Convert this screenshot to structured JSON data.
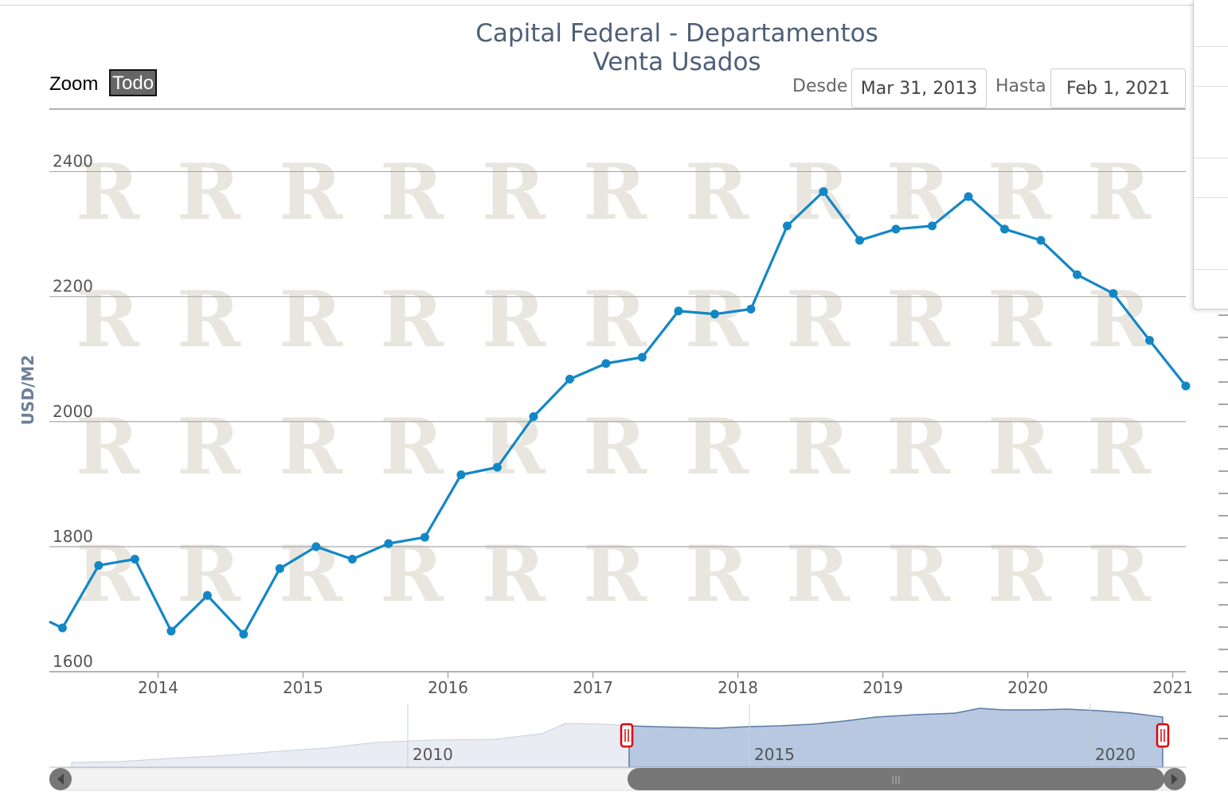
{
  "title": "Capital Federal - Departamentos Venta Usados",
  "zoom": {
    "label": "Zoom",
    "button": "Todo"
  },
  "range": {
    "from_label": "Desde",
    "from_value": "Mar 31, 2013",
    "to_label": "Hasta",
    "to_value": "Feb 1, 2021"
  },
  "navigator": {
    "tick_labels": [
      "2010",
      "2015",
      "2020"
    ],
    "scroll_grip": "III"
  },
  "colors": {
    "line": "#1387c6",
    "title": "#4d5f78",
    "watermark": "#e4e0d8",
    "navigator_fill": "#b7c8e0",
    "handle": "#e0000f"
  },
  "chart_data": {
    "type": "line",
    "title": "Capital Federal - Departamentos Venta Usados",
    "xlabel": "",
    "ylabel": "USD/M2",
    "ylim": [
      1600,
      2500
    ],
    "xlim": [
      2013.25,
      2021.09
    ],
    "y_ticks": [
      1600,
      1800,
      2000,
      2200,
      2400
    ],
    "x_ticks": [
      2014,
      2015,
      2016,
      2017,
      2018,
      2019,
      2020,
      2021
    ],
    "x_tick_labels": [
      "2014",
      "2015",
      "2016",
      "2017",
      "2018",
      "2019",
      "2020",
      "2021"
    ],
    "grid": true,
    "legend": "none",
    "series": [
      {
        "x": [
          2013.25,
          2013.34,
          2013.59,
          2013.84,
          2014.09,
          2014.34,
          2014.59,
          2014.84,
          2015.09,
          2015.34,
          2015.59,
          2015.84,
          2016.09,
          2016.34,
          2016.59,
          2016.84,
          2017.09,
          2017.34,
          2017.59,
          2017.84,
          2018.09,
          2018.34,
          2018.59,
          2018.84,
          2019.09,
          2019.34,
          2019.59,
          2019.84,
          2020.09,
          2020.34,
          2020.59,
          2020.84,
          2021.09
        ],
        "values": [
          1680,
          1670,
          1770,
          1780,
          1665,
          1722,
          1660,
          1765,
          1800,
          1780,
          1805,
          1815,
          1915,
          1927,
          2008,
          2068,
          2093,
          2103,
          2177,
          2172,
          2180,
          2313,
          2368,
          2290,
          2308,
          2313,
          2360,
          2308,
          2290,
          2235,
          2205,
          2130,
          2057
        ]
      }
    ]
  }
}
